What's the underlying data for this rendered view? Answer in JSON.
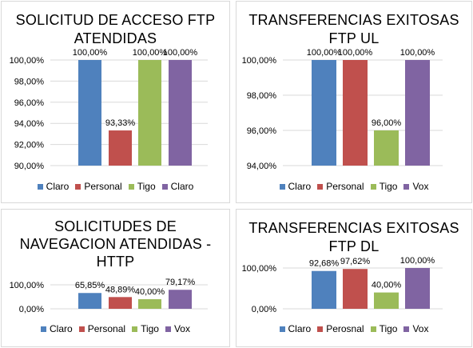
{
  "colors": {
    "blue": "#4f81bd",
    "red": "#c0504d",
    "green": "#9bbb59",
    "purple": "#8064a2",
    "grid": "#d9d9d9",
    "text": "#000000"
  },
  "chart_data": [
    {
      "type": "bar",
      "title": [
        "SOLICITUD DE ACCESO FTP",
        "ATENDIDAS"
      ],
      "categories": [
        "Claro",
        "Personal",
        "Tigo",
        "Claro"
      ],
      "values": [
        100.0,
        93.33,
        100.0,
        100.0
      ],
      "value_labels": [
        "100,00%",
        "93,33%",
        "100,00%",
        "100,00%"
      ],
      "bar_colors": [
        "#4f81bd",
        "#c0504d",
        "#9bbb59",
        "#8064a2"
      ],
      "ylim": [
        90,
        100
      ],
      "yticks": [
        90,
        92,
        94,
        96,
        98,
        100
      ],
      "ytick_labels": [
        "90,00%",
        "92,00%",
        "94,00%",
        "96,00%",
        "98,00%",
        "100,00%"
      ],
      "legend": [
        "Claro",
        "Personal",
        "Tigo",
        "Claro"
      ],
      "legend_position": "bottom",
      "grid": true
    },
    {
      "type": "bar",
      "title": [
        "TRANSFERENCIAS EXITOSAS",
        "FTP UL"
      ],
      "categories": [
        "Claro",
        "Personal",
        "Tigo",
        "Vox"
      ],
      "values": [
        100.0,
        100.0,
        96.0,
        100.0
      ],
      "value_labels": [
        "100,00%",
        "100,00%",
        "96,00%",
        "100,00%"
      ],
      "bar_colors": [
        "#4f81bd",
        "#c0504d",
        "#9bbb59",
        "#8064a2"
      ],
      "ylim": [
        94,
        100
      ],
      "yticks": [
        94,
        96,
        98,
        100
      ],
      "ytick_labels": [
        "94,00%",
        "96,00%",
        "98,00%",
        "100,00%"
      ],
      "legend": [
        "Claro",
        "Personal",
        "Tigo",
        "Vox"
      ],
      "legend_position": "bottom",
      "grid": true
    },
    {
      "type": "bar",
      "title": [
        "SOLICITUDES DE",
        "NAVEGACION ATENDIDAS -",
        "HTTP"
      ],
      "categories": [
        "Claro",
        "Personal",
        "Tigo",
        "Vox"
      ],
      "values": [
        65.85,
        48.89,
        40.0,
        79.17
      ],
      "value_labels": [
        "65,85%",
        "48,89%",
        "40,00%",
        "79,17%"
      ],
      "bar_colors": [
        "#4f81bd",
        "#c0504d",
        "#9bbb59",
        "#8064a2"
      ],
      "ylim": [
        0,
        100
      ],
      "yticks": [
        0,
        100
      ],
      "ytick_labels": [
        "0,00%",
        "100,00%"
      ],
      "legend": [
        "Claro",
        "Personal",
        "Tigo",
        "Vox"
      ],
      "legend_position": "bottom",
      "grid": true
    },
    {
      "type": "bar",
      "title": [
        "TRANSFERENCIAS EXITOSAS",
        "FTP DL"
      ],
      "categories": [
        "Claro",
        "Perosnal",
        "Tigo",
        "Vox"
      ],
      "values": [
        92.68,
        97.62,
        40.0,
        100.0
      ],
      "value_labels": [
        "92,68%",
        "97,62%",
        "40,00%",
        "100,00%"
      ],
      "bar_colors": [
        "#4f81bd",
        "#c0504d",
        "#9bbb59",
        "#8064a2"
      ],
      "ylim": [
        0,
        100
      ],
      "yticks": [
        0,
        100
      ],
      "ytick_labels": [
        "0,00%",
        "100,00%"
      ],
      "legend": [
        "Claro",
        "Perosnal",
        "Tigo",
        "Vox"
      ],
      "legend_position": "bottom",
      "grid": true
    }
  ]
}
